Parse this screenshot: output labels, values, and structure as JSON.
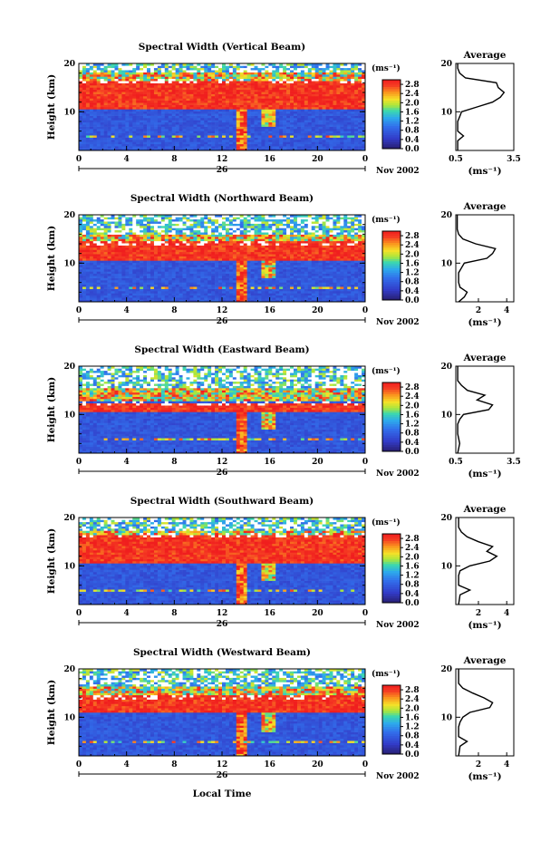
{
  "figure": {
    "month_label": "Nov 2002",
    "day_label": "26",
    "xlabel_bottom": "Local Time",
    "time_ticks": [
      "0",
      "4",
      "8",
      "12",
      "16",
      "20",
      "0"
    ],
    "cbar_unit": "(ms⁻¹)",
    "cbar_ticks": [
      "2.8",
      "2.4",
      "2.0",
      "1.6",
      "1.2",
      "0.8",
      "0.4",
      "0.0"
    ],
    "avg_title": "Average",
    "avg_xlabel": "(ms⁻¹)"
  },
  "chart_data": [
    {
      "type": "heatmap",
      "title": "Spectral Width (Vertical Beam)",
      "ylabel": "Height (km)",
      "yticks": [
        "20",
        "10"
      ],
      "ylim": [
        2,
        20
      ],
      "xlim": [
        0,
        24
      ],
      "color_range": [
        0.0,
        3.0
      ],
      "features": {
        "red_band_km": [
          10.5,
          16.5
        ],
        "upper_band_km": [
          16.5,
          18
        ],
        "plume_hours": [
          13,
          16
        ]
      },
      "average_profile": {
        "xticks": [
          "0.5",
          "3.5"
        ],
        "xlim": [
          0.5,
          3.5
        ],
        "height_km": [
          2,
          4,
          5,
          6,
          8,
          9,
          10,
          11,
          12,
          13,
          14,
          15,
          16,
          17,
          18,
          19,
          20
        ],
        "width": [
          0.6,
          0.6,
          0.9,
          0.6,
          0.6,
          0.7,
          0.8,
          1.6,
          2.4,
          2.8,
          3.0,
          2.7,
          2.6,
          1.0,
          0.7,
          0.6,
          0.6
        ]
      }
    },
    {
      "type": "heatmap",
      "title": "Spectral Width (Northward Beam)",
      "ylabel": "Height (km)",
      "yticks": [
        "20",
        "10"
      ],
      "ylim": [
        2,
        20
      ],
      "xlim": [
        0,
        24
      ],
      "color_range": [
        0.0,
        3.0
      ],
      "features": {
        "red_band_km": [
          10.5,
          14.5
        ],
        "upper_band_km": [
          14.5,
          16
        ],
        "plume_hours": [
          13,
          16
        ]
      },
      "average_profile": {
        "xticks": [
          "2",
          "4"
        ],
        "xlim": [
          0.4,
          4.5
        ],
        "height_km": [
          2,
          3,
          4,
          5,
          6,
          8,
          9,
          10,
          11,
          12,
          13,
          14,
          15,
          16,
          17,
          18,
          19,
          20
        ],
        "width": [
          0.6,
          1.0,
          1.2,
          0.7,
          0.6,
          0.6,
          0.8,
          1.0,
          2.6,
          3.0,
          3.2,
          1.8,
          0.9,
          0.6,
          0.5,
          0.5,
          0.5,
          0.5
        ]
      }
    },
    {
      "type": "heatmap",
      "title": "Spectral Width (Eastward Beam)",
      "ylabel": "Height (km)",
      "yticks": [
        "20",
        "10"
      ],
      "ylim": [
        2,
        20
      ],
      "xlim": [
        0,
        24
      ],
      "color_range": [
        0.0,
        3.0
      ],
      "features": {
        "red_band_km": [
          10.5,
          12.5
        ],
        "upper_band_km": [
          13,
          15.5
        ],
        "plume_hours": [
          13,
          16
        ]
      },
      "average_profile": {
        "xticks": [
          "0.5",
          "3.5"
        ],
        "xlim": [
          0.5,
          3.5
        ],
        "height_km": [
          2,
          4,
          6,
          8,
          9,
          10,
          11,
          12,
          13,
          14,
          15,
          16,
          17,
          18,
          19,
          20
        ],
        "width": [
          0.6,
          0.7,
          0.6,
          0.6,
          0.7,
          0.9,
          2.2,
          2.4,
          1.6,
          2.0,
          1.1,
          0.8,
          0.6,
          0.6,
          0.6,
          0.6
        ]
      }
    },
    {
      "type": "heatmap",
      "title": "Spectral Width (Southward Beam)",
      "ylabel": "Height (km)",
      "yticks": [
        "20",
        "10"
      ],
      "ylim": [
        2,
        20
      ],
      "xlim": [
        0,
        24
      ],
      "color_range": [
        0.0,
        3.0
      ],
      "features": {
        "red_band_km": [
          10.5,
          16.5
        ],
        "upper_band_km": [
          16.5,
          17.5
        ],
        "plume_hours": [
          13,
          16
        ]
      },
      "average_profile": {
        "xticks": [
          "2",
          "4"
        ],
        "xlim": [
          0.4,
          4.5
        ],
        "height_km": [
          2,
          4,
          5,
          6,
          8,
          9,
          10,
          11,
          12,
          13,
          14,
          15,
          16,
          17,
          18,
          19,
          20
        ],
        "width": [
          0.6,
          0.7,
          1.4,
          0.6,
          0.6,
          0.7,
          1.4,
          2.8,
          3.3,
          2.6,
          3.0,
          2.0,
          1.2,
          0.8,
          0.6,
          0.6,
          0.6
        ]
      }
    },
    {
      "type": "heatmap",
      "title": "Spectral Width (Westward Beam)",
      "ylabel": "Height (km)",
      "yticks": [
        "20",
        "10"
      ],
      "ylim": [
        2,
        20
      ],
      "xlim": [
        0,
        24
      ],
      "color_range": [
        0.0,
        3.0
      ],
      "features": {
        "red_band_km": [
          11,
          14.5
        ],
        "upper_band_km": [
          14.5,
          16.5
        ],
        "plume_hours": [
          13,
          16
        ]
      },
      "average_profile": {
        "xticks": [
          "2",
          "4"
        ],
        "xlim": [
          0.4,
          4.5
        ],
        "height_km": [
          2,
          4,
          5,
          6,
          8,
          9,
          10,
          11,
          12,
          13,
          14,
          15,
          16,
          17,
          18,
          19,
          20
        ],
        "width": [
          0.6,
          0.7,
          1.2,
          0.6,
          0.6,
          0.7,
          0.9,
          1.4,
          2.8,
          3.0,
          2.4,
          1.6,
          0.9,
          0.6,
          0.6,
          0.6,
          0.6
        ]
      }
    }
  ]
}
